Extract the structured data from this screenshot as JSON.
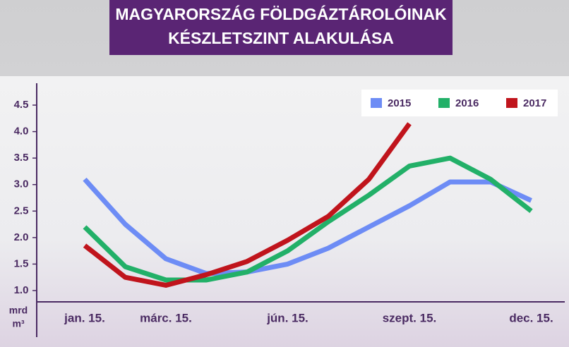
{
  "chart_data": {
    "type": "line",
    "title": [
      "MAGYARORSZÁG FÖLDGÁZTÁROLÓINAK",
      "KÉSZLETSZINT ALAKULÁSA"
    ],
    "ylabel": [
      "mrd",
      "m³"
    ],
    "categories": [
      "jan. 15.",
      null,
      "márc. 15.",
      null,
      null,
      "jún. 15.",
      null,
      null,
      "szept. 15.",
      null,
      null,
      "dec. 15."
    ],
    "series": [
      {
        "name": "2015",
        "color": "#6d8cf5",
        "values": [
          3.1,
          2.25,
          1.6,
          1.32,
          1.35,
          1.5,
          1.8,
          2.2,
          2.6,
          3.05,
          3.05,
          2.7
        ]
      },
      {
        "name": "2016",
        "color": "#22b068",
        "values": [
          2.2,
          1.45,
          1.2,
          1.2,
          1.35,
          1.75,
          2.3,
          2.8,
          3.35,
          3.5,
          3.1,
          2.5
        ]
      },
      {
        "name": "2017",
        "color": "#c0141c",
        "values": [
          1.85,
          1.25,
          1.1,
          1.3,
          1.55,
          1.95,
          2.4,
          3.1,
          4.15,
          null,
          null,
          null
        ]
      }
    ],
    "ylim": [
      0.8,
      4.7
    ],
    "yticks": [
      {
        "value": 1,
        "label": "1.0"
      },
      1.5,
      {
        "value": 2,
        "label": "2.0"
      },
      2.5,
      {
        "value": 3,
        "label": "3.0"
      },
      3.5,
      {
        "value": 4,
        "label": "4.0"
      },
      4.5
    ],
    "legend": "top-right"
  }
}
